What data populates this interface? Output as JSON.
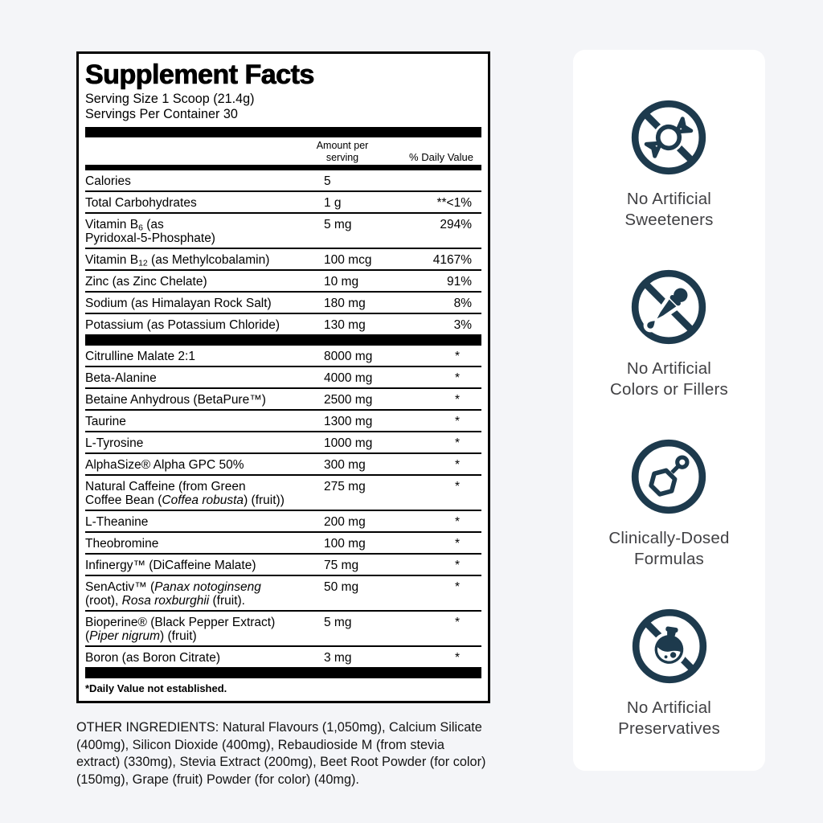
{
  "colors": {
    "page_bg": "#f4f5f8",
    "icon": "#1d3a4d",
    "badge_text": "#414144",
    "table_text": "#000000"
  },
  "label": {
    "title": "Supplement Facts",
    "serving_size": "Serving Size 1 Scoop (21.4g)",
    "servings_per_container": "Servings Per Container 30",
    "col_amount_header": "Amount per\nserving",
    "col_dv_header": "% Daily Value",
    "rows_top": [
      {
        "name": "Calories",
        "amount": "5",
        "dv": ""
      },
      {
        "name": "Total Carbohydrates",
        "amount": "1 g",
        "dv": "**<1%"
      },
      {
        "name": "Vitamin B~6~ (as\nPyridoxal-5-Phosphate)",
        "amount": "5 mg",
        "dv": "294%"
      },
      {
        "name": "Vitamin B~12~ (as Methylcobalamin)",
        "amount": "100 mcg",
        "dv": "4167%"
      },
      {
        "name": "Zinc (as Zinc Chelate)",
        "amount": "10 mg",
        "dv": "91%"
      },
      {
        "name": "Sodium (as Himalayan Rock Salt)",
        "amount": "180 mg",
        "dv": "8%"
      },
      {
        "name": "Potassium (as Potassium Chloride)",
        "amount": "130 mg",
        "dv": "3%"
      }
    ],
    "rows_blend": [
      {
        "name": "Citrulline Malate 2:1",
        "amount": "8000 mg",
        "dv": "*"
      },
      {
        "name": "Beta-Alanine",
        "amount": "4000 mg",
        "dv": "*"
      },
      {
        "name": "Betaine Anhydrous (BetaPure™)",
        "amount": "2500 mg",
        "dv": "*"
      },
      {
        "name": "Taurine",
        "amount": "1300 mg",
        "dv": "*"
      },
      {
        "name": "L-Tyrosine",
        "amount": "1000 mg",
        "dv": "*"
      },
      {
        "name": "AlphaSize® Alpha GPC 50%",
        "amount": "300 mg",
        "dv": "*"
      },
      {
        "name": "Natural Caffeine (from Green\nCoffee Bean (*Coffea robusta*) (fruit))",
        "amount": "275 mg",
        "dv": "*"
      },
      {
        "name": "L-Theanine",
        "amount": "200 mg",
        "dv": "*"
      },
      {
        "name": "Theobromine",
        "amount": "100 mg",
        "dv": "*"
      },
      {
        "name": "Infinergy™ (DiCaffeine Malate)",
        "amount": "75 mg",
        "dv": "*"
      },
      {
        "name": "SenActiv™ (*Panax notoginseng*\n(root), *Rosa roxburghii* (fruit).",
        "amount": "50 mg",
        "dv": "*"
      },
      {
        "name": "Bioperine® (Black Pepper Extract)\n(*Piper nigrum*) (fruit)",
        "amount": "5 mg",
        "dv": "*"
      },
      {
        "name": "Boron (as Boron Citrate)",
        "amount": "3 mg",
        "dv": "*"
      }
    ],
    "footnote": "*Daily Value not established."
  },
  "other_ingredients": "OTHER INGREDIENTS: Natural Flavours (1,050mg), Calcium Silicate (400mg), Silicon Dioxide (400mg), Rebaudioside M (from stevia extract) (330mg), Stevia Extract (200mg), Beet Root Powder (for color)(150mg), Grape (fruit) Powder (for color) (40mg).",
  "badges": [
    {
      "icon": "no-artificial-sweeteners-icon",
      "label": "No Artificial\nSweeteners"
    },
    {
      "icon": "no-artificial-colors-icon",
      "label": "No Artificial\nColors or Fillers"
    },
    {
      "icon": "clinically-dosed-icon",
      "label": "Clinically-Dosed\nFormulas"
    },
    {
      "icon": "no-artificial-preservatives-icon",
      "label": "No Artificial\nPreservatives"
    }
  ]
}
